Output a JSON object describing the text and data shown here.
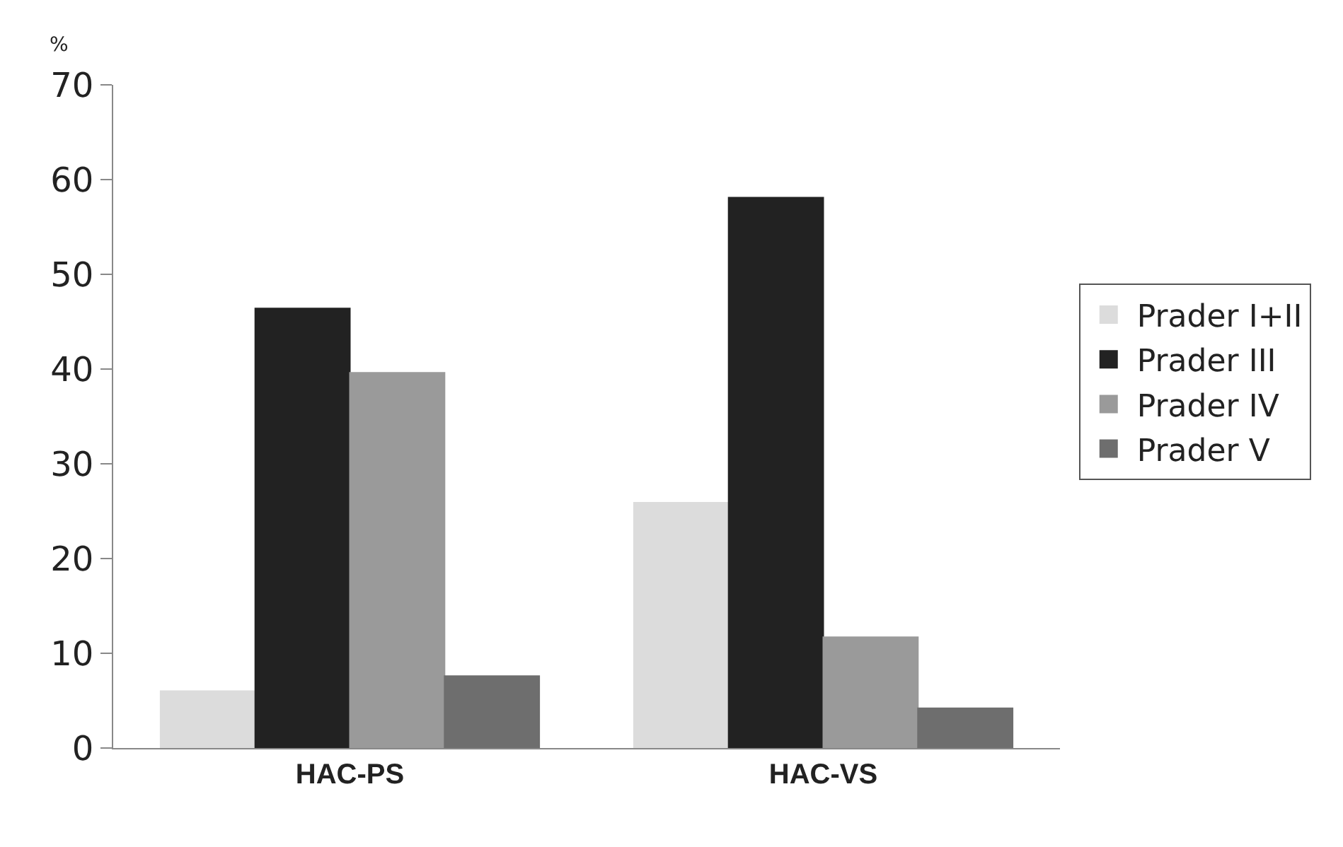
{
  "chart_data": {
    "type": "bar",
    "ylabel": "%",
    "categories": [
      "HAC-PS",
      "HAC-VS"
    ],
    "series": [
      {
        "name": "Prader I+II",
        "color": "#dcdcdc",
        "values": [
          6.0,
          25.9
        ]
      },
      {
        "name": "Prader III",
        "color": "#222222",
        "values": [
          46.4,
          58.1
        ]
      },
      {
        "name": "Prader IV",
        "color": "#9a9a9a",
        "values": [
          39.6,
          11.7
        ]
      },
      {
        "name": "Prader V",
        "color": "#6e6e6e",
        "values": [
          7.6,
          4.2
        ]
      }
    ],
    "ylim": [
      0,
      70
    ],
    "yticks": [
      0,
      10,
      20,
      30,
      40,
      50,
      60,
      70
    ],
    "grid": false,
    "legend": "right"
  }
}
